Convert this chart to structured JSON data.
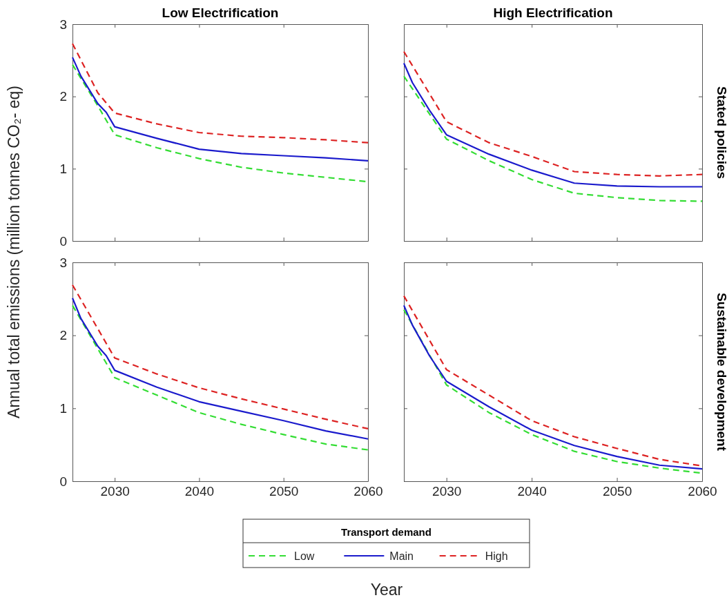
{
  "chart_data": [
    {
      "type": "line",
      "title": "Low Electrification",
      "ylabel": "Annual total emissions (million tonnes CO₂- eq)",
      "xlim": [
        2025,
        2060
      ],
      "xticks": [
        2030,
        2040,
        2050,
        2060
      ],
      "ylim": [
        0,
        3
      ],
      "yticks": [
        0,
        1,
        2,
        3
      ],
      "tick_labels": "y",
      "legend": false,
      "series": [
        {
          "color": "#33dd33",
          "line_style": "dashed",
          "x": [
            2025,
            2028,
            2030,
            2035,
            2040,
            2045,
            2050,
            2055,
            2060
          ],
          "values": [
            2.44,
            1.87,
            1.47,
            1.29,
            1.14,
            1.02,
            0.94,
            0.88,
            0.82
          ]
        },
        {
          "color": "#1a1acc",
          "line_style": "solid",
          "x": [
            2025,
            2026,
            2028,
            2029,
            2030,
            2035,
            2040,
            2045,
            2050,
            2055,
            2060
          ],
          "values": [
            2.54,
            2.28,
            1.9,
            1.78,
            1.58,
            1.42,
            1.27,
            1.21,
            1.18,
            1.15,
            1.11
          ]
        },
        {
          "color": "#dd2222",
          "line_style": "dashed",
          "x": [
            2025,
            2028,
            2030,
            2035,
            2040,
            2045,
            2050,
            2055,
            2060
          ],
          "values": [
            2.73,
            2.05,
            1.77,
            1.62,
            1.5,
            1.45,
            1.43,
            1.4,
            1.36
          ]
        }
      ]
    },
    {
      "type": "line",
      "title": "High Electrification",
      "annotations": [
        "Stated policies"
      ],
      "xlim": [
        2025,
        2060
      ],
      "xticks": [
        2030,
        2040,
        2050,
        2060
      ],
      "ylim": [
        0,
        3
      ],
      "yticks": [
        0,
        1,
        2,
        3
      ],
      "tick_labels": false,
      "legend": false,
      "series": [
        {
          "color": "#33dd33",
          "line_style": "dashed",
          "x": [
            2025,
            2030,
            2035,
            2040,
            2045,
            2050,
            2055,
            2060
          ],
          "values": [
            2.28,
            1.41,
            1.11,
            0.85,
            0.66,
            0.6,
            0.56,
            0.55
          ]
        },
        {
          "color": "#1a1acc",
          "line_style": "solid",
          "x": [
            2025,
            2026,
            2028,
            2030,
            2035,
            2040,
            2045,
            2050,
            2055,
            2060
          ],
          "values": [
            2.46,
            2.19,
            1.81,
            1.47,
            1.2,
            0.98,
            0.8,
            0.76,
            0.75,
            0.75
          ]
        },
        {
          "color": "#dd2222",
          "line_style": "dashed",
          "x": [
            2025,
            2030,
            2035,
            2040,
            2045,
            2050,
            2055,
            2060
          ],
          "values": [
            2.62,
            1.65,
            1.36,
            1.17,
            0.96,
            0.92,
            0.9,
            0.92
          ]
        }
      ]
    },
    {
      "type": "line",
      "xlabel": "Year",
      "legend": "bottom",
      "legend_title": "Transport demand",
      "xlim": [
        2025,
        2060
      ],
      "xticks": [
        2030,
        2040,
        2050,
        2060
      ],
      "ylim": [
        0,
        3
      ],
      "yticks": [
        0,
        1,
        2,
        3
      ],
      "series": [
        {
          "name": "Low",
          "color": "#33dd33",
          "line_style": "dashed",
          "x": [
            2025,
            2030,
            2035,
            2040,
            2045,
            2050,
            2055,
            2060
          ],
          "values": [
            2.41,
            1.42,
            1.18,
            0.94,
            0.78,
            0.64,
            0.51,
            0.43
          ]
        },
        {
          "name": "Main",
          "color": "#1a1acc",
          "line_style": "solid",
          "x": [
            2025,
            2026,
            2028,
            2029,
            2030,
            2035,
            2040,
            2045,
            2050,
            2055,
            2060
          ],
          "values": [
            2.51,
            2.23,
            1.85,
            1.72,
            1.52,
            1.29,
            1.09,
            0.96,
            0.83,
            0.69,
            0.58
          ]
        },
        {
          "name": "High",
          "color": "#dd2222",
          "line_style": "dashed",
          "x": [
            2025,
            2030,
            2035,
            2040,
            2045,
            2050,
            2055,
            2060
          ],
          "values": [
            2.69,
            1.69,
            1.47,
            1.28,
            1.13,
            0.99,
            0.85,
            0.72
          ]
        }
      ]
    },
    {
      "type": "line",
      "annotations": [
        "Sustainable development"
      ],
      "xlim": [
        2025,
        2060
      ],
      "xticks": [
        2030,
        2040,
        2050,
        2060
      ],
      "ylim": [
        0,
        3
      ],
      "yticks": [
        0,
        1,
        2,
        3
      ],
      "tick_labels": "x",
      "legend": false,
      "series": [
        {
          "color": "#33dd33",
          "line_style": "dashed",
          "x": [
            2025,
            2030,
            2035,
            2040,
            2045,
            2050,
            2055,
            2060
          ],
          "values": [
            2.35,
            1.32,
            0.94,
            0.64,
            0.41,
            0.27,
            0.18,
            0.11
          ]
        },
        {
          "color": "#1a1acc",
          "line_style": "solid",
          "x": [
            2025,
            2026,
            2028,
            2030,
            2035,
            2040,
            2045,
            2050,
            2055,
            2060
          ],
          "values": [
            2.41,
            2.14,
            1.72,
            1.37,
            1.02,
            0.7,
            0.49,
            0.34,
            0.22,
            0.17
          ]
        },
        {
          "color": "#dd2222",
          "line_style": "dashed",
          "x": [
            2025,
            2030,
            2035,
            2040,
            2045,
            2050,
            2055,
            2060
          ],
          "values": [
            2.54,
            1.53,
            1.18,
            0.83,
            0.61,
            0.45,
            0.3,
            0.21
          ]
        }
      ]
    }
  ]
}
